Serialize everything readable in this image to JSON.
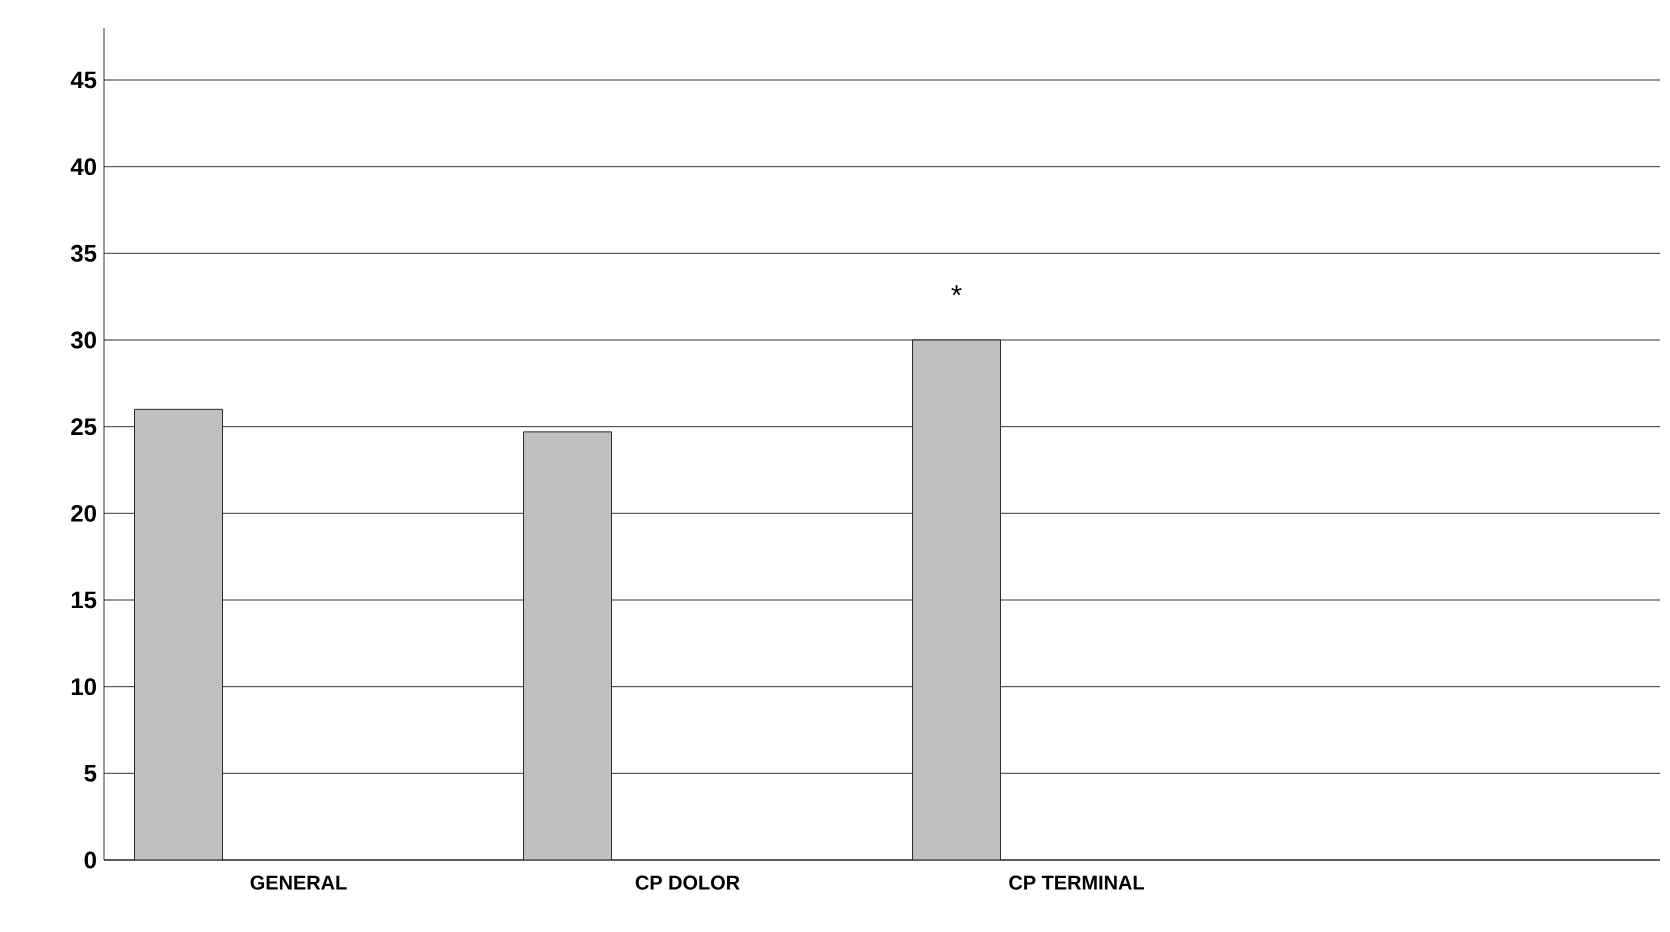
{
  "chart_data": {
    "type": "bar",
    "categories": [
      "GENERAL",
      "CP DOLOR",
      "CP TERMINAL",
      null
    ],
    "values": [
      26,
      24.7,
      30,
      null
    ],
    "color": "#c0c0c0",
    "ylim": [
      0,
      48
    ],
    "yticks": [
      0,
      5,
      10,
      15,
      20,
      25,
      30,
      35,
      40,
      45
    ],
    "grid": "y",
    "annotations": [
      "*"
    ]
  }
}
